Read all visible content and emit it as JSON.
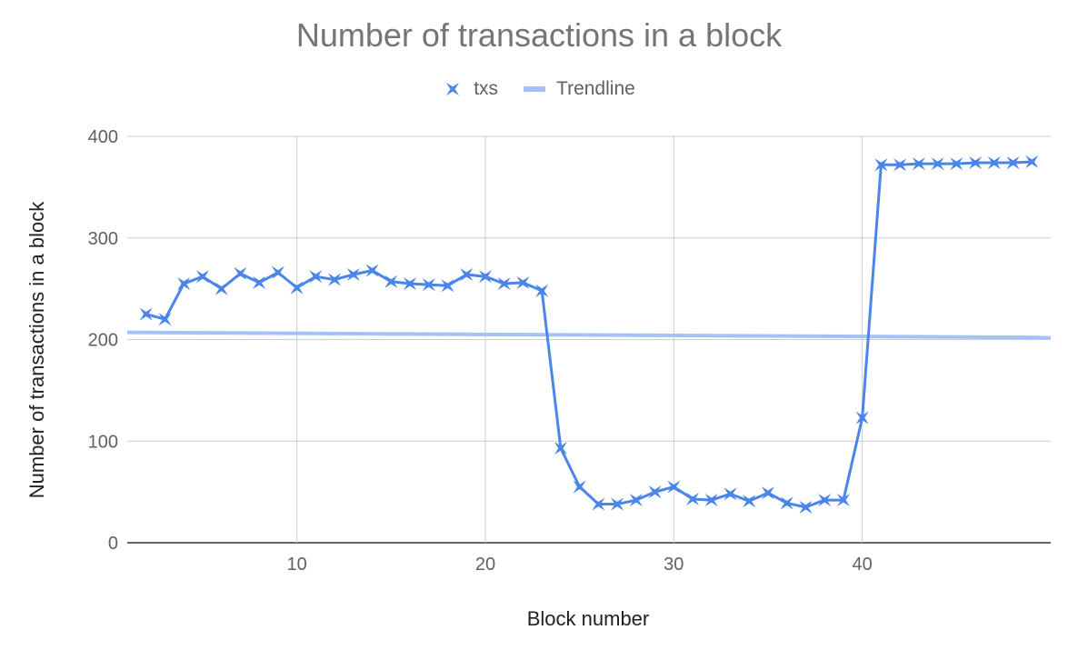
{
  "chart_data": {
    "type": "line",
    "title": "Number of transactions in a block",
    "xlabel": "Block number",
    "ylabel": "Number of transactions in a block",
    "xlim": [
      1,
      50
    ],
    "ylim": [
      0,
      400
    ],
    "x_ticks": [
      10,
      20,
      30,
      40
    ],
    "y_ticks": [
      0,
      100,
      200,
      300,
      400
    ],
    "grid": true,
    "legend_position": "top",
    "series": [
      {
        "name": "txs",
        "color": "#4a86e8",
        "marker": "star-x",
        "x": [
          2,
          3,
          4,
          5,
          6,
          7,
          8,
          9,
          10,
          11,
          12,
          13,
          14,
          15,
          16,
          17,
          18,
          19,
          20,
          21,
          22,
          23,
          24,
          25,
          26,
          27,
          28,
          29,
          30,
          31,
          32,
          33,
          34,
          35,
          36,
          37,
          38,
          39,
          40,
          41,
          42,
          43,
          44,
          45,
          46,
          47,
          48,
          49
        ],
        "y": [
          225,
          220,
          255,
          262,
          250,
          265,
          256,
          266,
          251,
          262,
          259,
          264,
          268,
          257,
          255,
          254,
          253,
          264,
          262,
          255,
          256,
          248,
          93,
          55,
          38,
          38,
          42,
          50,
          55,
          43,
          42,
          48,
          41,
          49,
          39,
          35,
          42,
          42,
          123,
          372,
          372,
          373,
          373,
          373,
          374,
          374,
          374,
          375
        ]
      },
      {
        "name": "Trendline",
        "color": "#a4c2f4",
        "type": "trendline",
        "x": [
          1,
          50
        ],
        "y": [
          207,
          202
        ]
      }
    ]
  }
}
